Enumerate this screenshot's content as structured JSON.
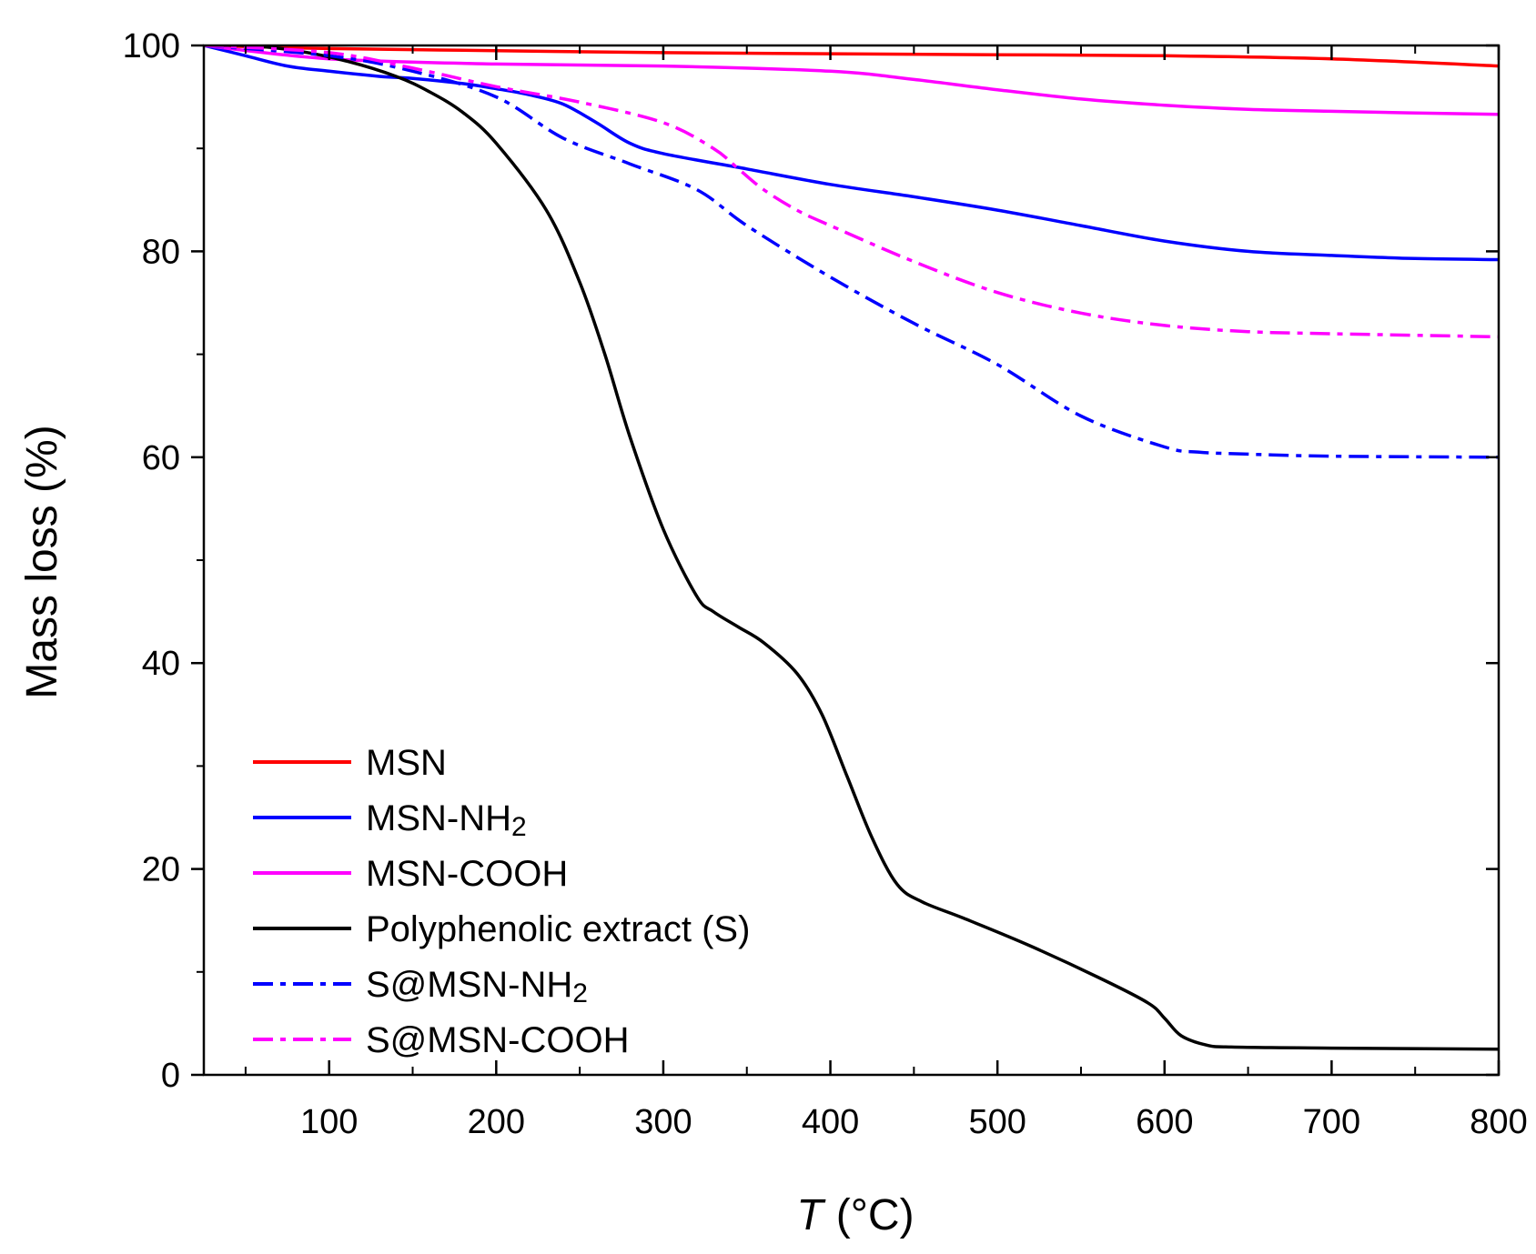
{
  "chart_data": {
    "type": "line",
    "xlabel_symbol": "T",
    "xlabel_unit": "(°C)",
    "ylabel": "Mass loss (%)",
    "xlim": [
      25,
      800
    ],
    "ylim": [
      0,
      100
    ],
    "xticks": [
      100,
      200,
      300,
      400,
      500,
      600,
      700,
      800
    ],
    "xticks_minor": [
      50,
      150,
      250,
      350,
      450,
      550,
      650,
      750
    ],
    "yticks": [
      0,
      20,
      40,
      60,
      80,
      100
    ],
    "yticks_minor": [
      10,
      30,
      50,
      70,
      90
    ],
    "legend_position": "bottom-left",
    "series": [
      {
        "name": "MSN",
        "label_main": "MSN",
        "label_sub": "",
        "color": "#ff0000",
        "style": "solid",
        "x": [
          25,
          100,
          200,
          300,
          400,
          500,
          600,
          700,
          800
        ],
        "y": [
          100,
          99.7,
          99.5,
          99.3,
          99.2,
          99.1,
          99.0,
          98.7,
          98.0
        ]
      },
      {
        "name": "MSN-NH2",
        "label_main": "MSN-NH",
        "label_sub": "2",
        "color": "#0000ff",
        "style": "solid",
        "x": [
          25,
          50,
          75,
          100,
          130,
          150,
          180,
          200,
          220,
          240,
          260,
          280,
          300,
          350,
          400,
          450,
          500,
          550,
          600,
          650,
          700,
          750,
          800
        ],
        "y": [
          100,
          99,
          98,
          97.5,
          97,
          96.8,
          96.3,
          95.8,
          95.2,
          94.3,
          92.5,
          90.5,
          89.5,
          88,
          86.5,
          85.3,
          84,
          82.5,
          81,
          80,
          79.6,
          79.3,
          79.2
        ]
      },
      {
        "name": "MSN-COOH",
        "label_main": "MSN-COOH",
        "label_sub": "",
        "color": "#ff00ff",
        "style": "solid",
        "x": [
          25,
          100,
          200,
          300,
          400,
          450,
          500,
          550,
          600,
          650,
          700,
          800
        ],
        "y": [
          100,
          98.7,
          98.2,
          98,
          97.5,
          96.7,
          95.7,
          94.8,
          94.2,
          93.8,
          93.6,
          93.3
        ]
      },
      {
        "name": "Polyphenolic extract (S)",
        "label_main": "Polyphenolic extract (S)",
        "label_sub": "",
        "color": "#000000",
        "style": "solid",
        "x": [
          25,
          50,
          80,
          110,
          140,
          160,
          180,
          200,
          230,
          250,
          265,
          280,
          300,
          320,
          330,
          345,
          360,
          380,
          395,
          410,
          425,
          440,
          455,
          480,
          520,
          560,
          590,
          600,
          610,
          625,
          640,
          700,
          800
        ],
        "y": [
          100,
          100,
          99.5,
          98.5,
          97,
          95.5,
          93.5,
          90.5,
          84,
          77,
          70,
          62,
          53,
          46.5,
          45,
          43.5,
          42,
          39,
          35,
          29,
          23,
          18.5,
          16.8,
          15.2,
          12.5,
          9.5,
          7,
          5.5,
          3.8,
          2.9,
          2.7,
          2.6,
          2.5
        ]
      },
      {
        "name": "S@MSN-NH2",
        "label_main": "S@MSN-NH",
        "label_sub": "2",
        "color": "#0000ff",
        "style": "dashdot",
        "x": [
          25,
          100,
          150,
          200,
          240,
          280,
          320,
          350,
          400,
          450,
          500,
          550,
          600,
          620,
          650,
          700,
          800
        ],
        "y": [
          100,
          99,
          97.5,
          95,
          91,
          88.5,
          86,
          82.5,
          77.5,
          73,
          69,
          64,
          61,
          60.5,
          60.3,
          60.1,
          60
        ]
      },
      {
        "name": "S@MSN-COOH",
        "label_main": "S@MSN-COOH",
        "label_sub": "",
        "color": "#ff00ff",
        "style": "dashdot",
        "x": [
          25,
          100,
          150,
          200,
          250,
          300,
          330,
          345,
          360,
          380,
          400,
          450,
          500,
          550,
          600,
          650,
          700,
          800
        ],
        "y": [
          100,
          99.3,
          97.8,
          96,
          94.5,
          92.5,
          90,
          88,
          86,
          84,
          82.5,
          79,
          76,
          74,
          72.8,
          72.2,
          72,
          71.7
        ]
      }
    ]
  }
}
